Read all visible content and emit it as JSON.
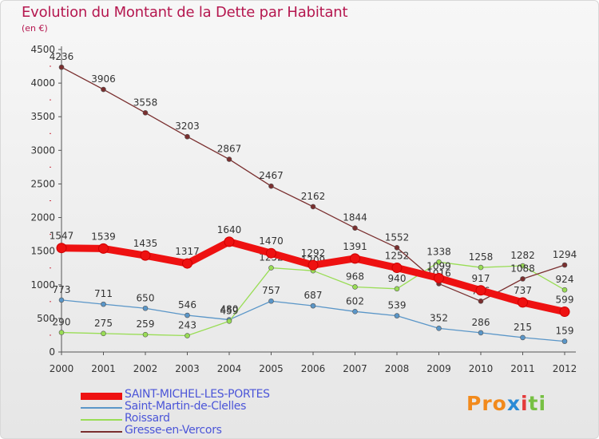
{
  "chart_data": {
    "type": "line",
    "title": "Evolution du Montant de la Dette par Habitant",
    "subtitle": "(en €)",
    "x": [
      "2000",
      "2001",
      "2002",
      "2003",
      "2004",
      "2005",
      "2006",
      "2007",
      "2008",
      "2009",
      "2010",
      "2011",
      "2012"
    ],
    "ylim": [
      0,
      4500
    ],
    "yticks": [
      0,
      500,
      1000,
      1500,
      2000,
      2500,
      3000,
      3500,
      4000,
      4500
    ],
    "grid": false,
    "legend_position": "bottom-left",
    "series": [
      {
        "name": "SAINT-MICHEL-LES-PORTES",
        "color": "#ee1111",
        "values": [
          1547,
          1539,
          1435,
          1317,
          1640,
          1470,
          1292,
          1391,
          1252,
          1099,
          917,
          737,
          599
        ]
      },
      {
        "name": "Saint-Martin-de-Clelles",
        "color": "#5a96c8",
        "values": [
          773,
          711,
          650,
          546,
          480,
          757,
          687,
          602,
          539,
          352,
          286,
          215,
          159
        ]
      },
      {
        "name": "Roissard",
        "color": "#99dd55",
        "values": [
          290,
          275,
          259,
          243,
          459,
          1252,
          1209,
          968,
          940,
          1338,
          1258,
          1282,
          924
        ]
      },
      {
        "name": "Gresse-en-Vercors",
        "color": "#7a2f2f",
        "values": [
          4236,
          3906,
          3558,
          3203,
          2867,
          2467,
          2162,
          1844,
          1552,
          1016,
          756,
          1088,
          1294
        ]
      }
    ]
  },
  "logo": {
    "parts": [
      "Pro",
      "x",
      "i",
      "ti"
    ],
    "colors": [
      "#f28a1c",
      "#2a8ad6",
      "#e43a3a",
      "#77c043"
    ]
  }
}
